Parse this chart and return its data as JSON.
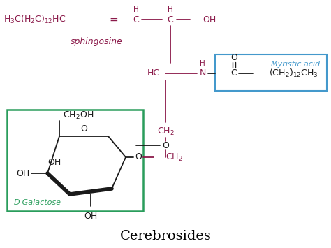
{
  "title": "Cerebrosides",
  "title_fontsize": 14,
  "title_color": "#000000",
  "background_color": "#ffffff",
  "pink_color": "#8B1A4A",
  "black_color": "#1a1a1a",
  "blue_box_color": "#4499cc",
  "green_box_color": "#2a9d5c",
  "sphingosine_label": "sphingosine",
  "myristic_label": "Myristic acid",
  "galactose_label": "D-Galactose",
  "fs_main": 9,
  "fs_small": 7.5,
  "fs_title": 14
}
